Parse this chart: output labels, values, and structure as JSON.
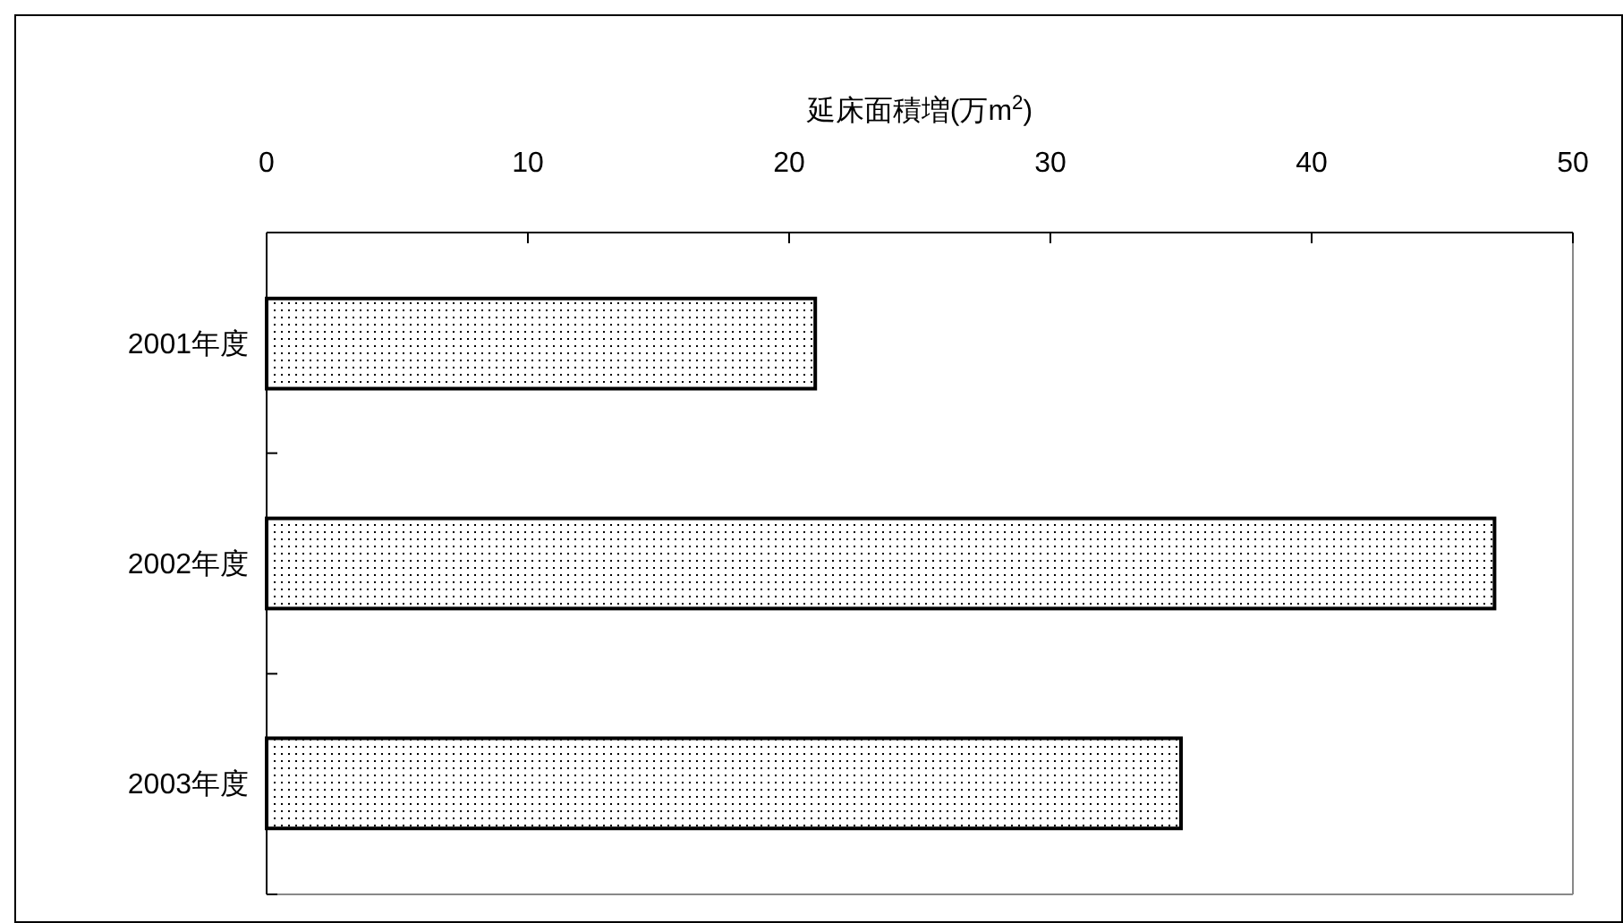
{
  "chart_data": {
    "type": "bar",
    "orientation": "horizontal",
    "xlabel": "延床面積増(万m$^{2}$)",
    "categories": [
      "2001年度",
      "2002年度",
      "2003年度"
    ],
    "values": [
      21,
      47,
      35
    ],
    "color": "#000000",
    "xlim": [
      0,
      50
    ],
    "xticks": [
      0,
      10,
      20,
      30,
      40,
      50
    ],
    "grid": false
  }
}
